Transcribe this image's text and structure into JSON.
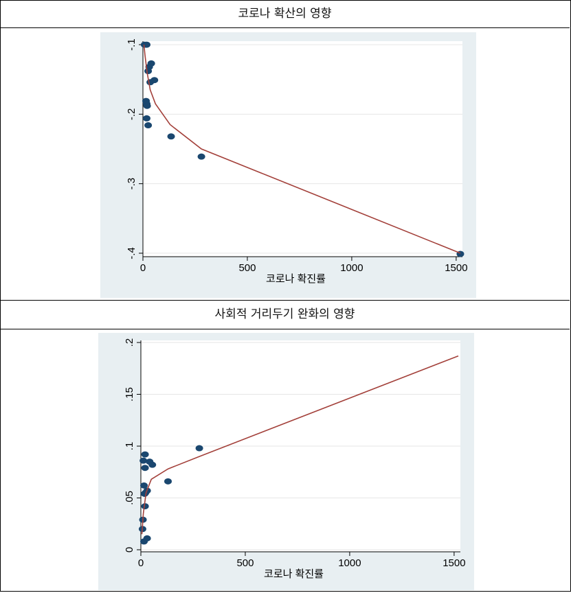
{
  "table": {
    "row1_title": "코로나 확산의 영향",
    "row2_title": "사회적 거리두기 완화의 영향"
  },
  "colors": {
    "panel": "#e8eff2",
    "plot_bg": "#ffffff",
    "marker": "#1a476f",
    "fit_line": "#a3403a",
    "grid": "#e6e6e6"
  },
  "chart_data": [
    {
      "type": "scatter",
      "title": "",
      "xlabel": "코로나 확진률",
      "ylabel": "",
      "xlim": [
        0,
        1530
      ],
      "ylim": [
        -0.405,
        -0.095
      ],
      "xticks": [
        0,
        500,
        1000,
        1500
      ],
      "xtick_labels": [
        "0",
        "500",
        "1000",
        "1500"
      ],
      "yticks": [
        -0.1,
        -0.2,
        -0.3,
        -0.4
      ],
      "ytick_labels": [
        "-.1",
        "-.2",
        "-.3",
        "-.4"
      ],
      "grid": true,
      "legend": "none",
      "points": [
        {
          "x": 8,
          "y": -0.1
        },
        {
          "x": 18,
          "y": -0.1
        },
        {
          "x": 40,
          "y": -0.127
        },
        {
          "x": 30,
          "y": -0.132
        },
        {
          "x": 25,
          "y": -0.138
        },
        {
          "x": 55,
          "y": -0.151
        },
        {
          "x": 35,
          "y": -0.154
        },
        {
          "x": 15,
          "y": -0.181
        },
        {
          "x": 18,
          "y": -0.185
        },
        {
          "x": 20,
          "y": -0.188
        },
        {
          "x": 18,
          "y": -0.206
        },
        {
          "x": 25,
          "y": -0.216
        },
        {
          "x": 135,
          "y": -0.232
        },
        {
          "x": 280,
          "y": -0.261
        },
        {
          "x": 1520,
          "y": -0.401
        }
      ],
      "fit_line": [
        {
          "x": 5,
          "y": -0.1
        },
        {
          "x": 10,
          "y": -0.115
        },
        {
          "x": 20,
          "y": -0.14
        },
        {
          "x": 35,
          "y": -0.165
        },
        {
          "x": 60,
          "y": -0.185
        },
        {
          "x": 130,
          "y": -0.215
        },
        {
          "x": 280,
          "y": -0.25
        },
        {
          "x": 1520,
          "y": -0.4
        }
      ]
    },
    {
      "type": "scatter",
      "title": "",
      "xlabel": "코로나 확진률",
      "ylabel": "",
      "xlim": [
        0,
        1530
      ],
      "ylim": [
        -0.002,
        0.202
      ],
      "xticks": [
        0,
        500,
        1000,
        1500
      ],
      "xtick_labels": [
        "0",
        "500",
        "1000",
        "1500"
      ],
      "yticks": [
        0,
        0.05,
        0.1,
        0.15,
        0.2
      ],
      "ytick_labels": [
        "0",
        ".05",
        ".1",
        ".15",
        ".2"
      ],
      "grid": true,
      "legend": "none",
      "points": [
        {
          "x": 20,
          "y": 0.092
        },
        {
          "x": 12,
          "y": 0.086
        },
        {
          "x": 42,
          "y": 0.085
        },
        {
          "x": 55,
          "y": 0.082
        },
        {
          "x": 20,
          "y": 0.079
        },
        {
          "x": 280,
          "y": 0.098
        },
        {
          "x": 130,
          "y": 0.066
        },
        {
          "x": 15,
          "y": 0.062
        },
        {
          "x": 30,
          "y": 0.057
        },
        {
          "x": 22,
          "y": 0.055
        },
        {
          "x": 18,
          "y": 0.054
        },
        {
          "x": 20,
          "y": 0.042
        },
        {
          "x": 10,
          "y": 0.029
        },
        {
          "x": 8,
          "y": 0.02
        },
        {
          "x": 30,
          "y": 0.011
        },
        {
          "x": 15,
          "y": 0.008
        }
      ],
      "fit_line": [
        {
          "x": 5,
          "y": 0.015
        },
        {
          "x": 12,
          "y": 0.035
        },
        {
          "x": 25,
          "y": 0.055
        },
        {
          "x": 50,
          "y": 0.068
        },
        {
          "x": 130,
          "y": 0.078
        },
        {
          "x": 280,
          "y": 0.09
        },
        {
          "x": 1520,
          "y": 0.187
        }
      ]
    }
  ]
}
